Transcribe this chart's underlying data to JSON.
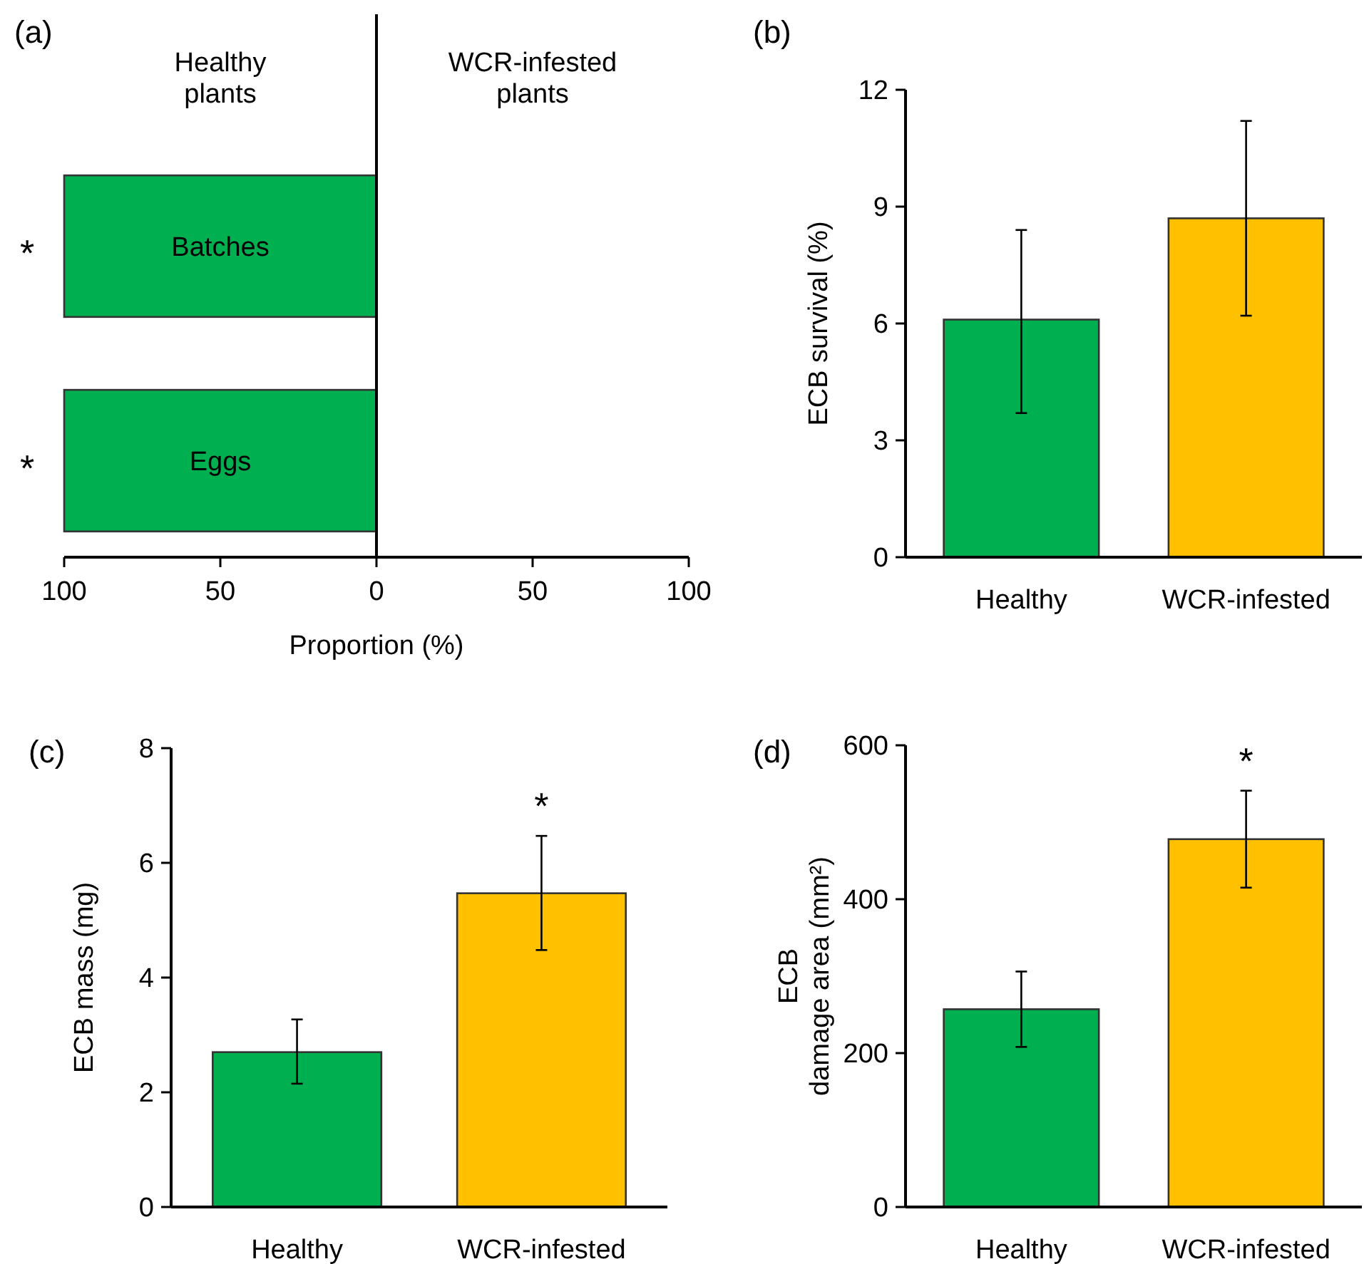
{
  "chart_data": [
    {
      "type": "bar",
      "title": "(a)",
      "orientation": "horizontal",
      "categories": [
        "Batches",
        "Eggs"
      ],
      "xlabel": "Proportion (%)",
      "xlim": [
        -100,
        100
      ],
      "xticks": [
        {
          "value": -100,
          "label": "100"
        },
        {
          "value": -50,
          "label": "50"
        },
        0,
        50,
        100
      ],
      "series": [
        {
          "color": "#00b050",
          "values": [
            -100,
            -100
          ]
        }
      ],
      "annotations": [
        "Healthy\nplants",
        "WCR-infested\nplants",
        {
          "text": "*",
          "x": -100,
          "y": "Batches"
        },
        {
          "text": "*",
          "x": -100,
          "y": "Eggs"
        }
      ]
    },
    {
      "type": "bar",
      "title": "(b)",
      "categories": [
        "Healthy",
        "WCR-infested"
      ],
      "ylabel": "ECB survival (%)",
      "ylim": [
        0,
        12
      ],
      "yticks": [
        0,
        3,
        6,
        9,
        12
      ],
      "series": [
        {
          "colors": [
            "#00b050",
            "#ffc000"
          ],
          "values": [
            6.1,
            8.7
          ],
          "errors": [
            [
              3.7,
              8.4
            ],
            [
              6.2,
              11.2
            ]
          ]
        }
      ]
    },
    {
      "type": "bar",
      "title": "(c)",
      "categories": [
        "Healthy",
        "WCR-infested"
      ],
      "ylabel": "ECB mass (mg)",
      "ylim": [
        0,
        8
      ],
      "yticks": [
        0,
        2,
        4,
        6,
        8
      ],
      "series": [
        {
          "colors": [
            "#00b050",
            "#ffc000"
          ],
          "values": [
            2.7,
            5.47
          ],
          "errors": [
            [
              2.15,
              3.27
            ],
            [
              4.48,
              6.47
            ]
          ]
        }
      ],
      "annotations": [
        {
          "text": "*",
          "x": "WCR-infested",
          "y": 6.47
        }
      ]
    },
    {
      "type": "bar",
      "title": "(d)",
      "categories": [
        "Healthy",
        "WCR-infested"
      ],
      "ylabel": "ECB\ndamage area (mm²)",
      "ylim": [
        0,
        600
      ],
      "yticks": [
        0,
        200,
        400,
        600
      ],
      "series": [
        {
          "colors": [
            "#00b050",
            "#ffc000"
          ],
          "values": [
            257,
            478
          ],
          "errors": [
            [
              208,
              306
            ],
            [
              415,
              541
            ]
          ]
        }
      ],
      "annotations": [
        {
          "text": "*",
          "x": "WCR-infested",
          "y": 541
        }
      ]
    }
  ]
}
